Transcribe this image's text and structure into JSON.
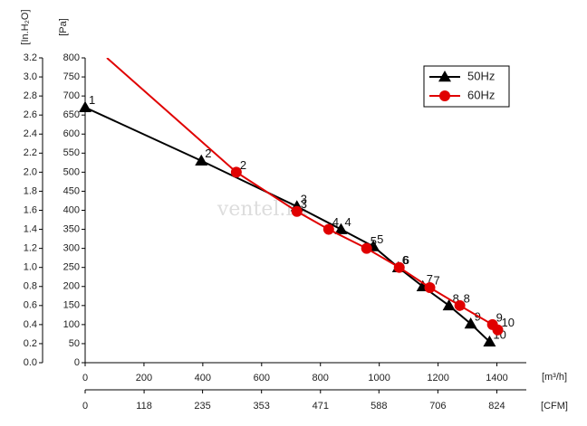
{
  "chart_data": {
    "type": "line",
    "watermark": "ventel.ru",
    "xlabel": "[m³/h]",
    "x2label": "[CFM]",
    "ylabel": "[Pa]",
    "y2label": "[In.H₂O]",
    "xlim": [
      0,
      1500
    ],
    "xticks": [
      0,
      200,
      400,
      600,
      800,
      1000,
      1200,
      1400
    ],
    "x2lim": [
      0,
      883
    ],
    "x2ticks": [
      0,
      118,
      235,
      353,
      471,
      588,
      706,
      824
    ],
    "ylim": [
      0,
      800
    ],
    "yticks": [
      0,
      50,
      100,
      150,
      200,
      250,
      300,
      350,
      400,
      450,
      500,
      550,
      600,
      650,
      700,
      750,
      800
    ],
    "y2lim": [
      0,
      3.2
    ],
    "y2ticks": [
      {
        "value": 0,
        "label": "0.0"
      },
      0.2,
      0.4,
      0.6,
      0.8,
      {
        "value": 1,
        "label": "1.0"
      },
      1.2,
      1.4,
      1.6,
      1.8,
      {
        "value": 2,
        "label": "2.0"
      },
      2.2,
      2.4,
      2.6,
      2.8,
      {
        "value": 3,
        "label": "3.0"
      },
      3.2
    ],
    "legend": "top-right",
    "series": [
      {
        "name": "50Hz",
        "color": "#000000",
        "marker": "triangle",
        "x": [
          0,
          395,
          720,
          870,
          980,
          1065,
          1148,
          1237,
          1311,
          1375
        ],
        "values": [
          670,
          530,
          410,
          350,
          305,
          250,
          200,
          150,
          102,
          55
        ],
        "labels": [
          "1",
          "2",
          "3",
          "4",
          "5",
          "6",
          "7",
          "8",
          "9",
          "10"
        ]
      },
      {
        "name": "60Hz",
        "color": "#e00000",
        "marker": "circle",
        "x": [
          74,
          514,
          720,
          828,
          957,
          1068,
          1172,
          1274,
          1385,
          1403
        ],
        "values": [
          800,
          500,
          397,
          350,
          300,
          250,
          197,
          150,
          100,
          86
        ],
        "labels": [
          null,
          "2",
          "3",
          "4",
          "5",
          "6",
          "7",
          "8",
          "9",
          "10"
        ]
      }
    ]
  }
}
